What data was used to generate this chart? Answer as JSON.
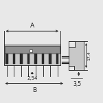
{
  "bg_color": "#e8e8e8",
  "line_color": "#1a1a1a",
  "body_color": "#c8c8c8",
  "dark_color": "#383838",
  "slot_color": "#2a2a2a",
  "label_A": "A",
  "label_B": "B",
  "label_254": "2,54",
  "label_35": "3,5",
  "label_174": "17,4",
  "num_pins": 8,
  "figsize": [
    1.5,
    1.5
  ],
  "dpi": 100
}
